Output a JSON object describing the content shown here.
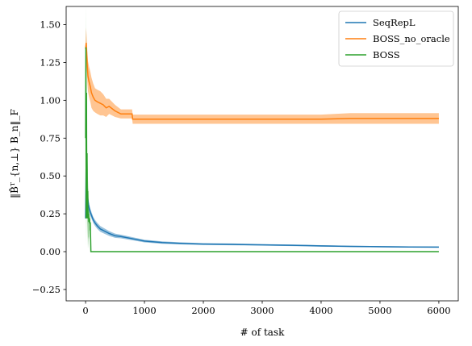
{
  "chart_data": {
    "type": "line",
    "title": "",
    "xlabel": "# of task",
    "ylabel": "‖B̂ᵀ_{n,⊥} B_n‖_F",
    "xlim": [
      -330,
      6330
    ],
    "ylim": [
      -0.325,
      1.62
    ],
    "xticks": [
      0,
      1000,
      2000,
      3000,
      4000,
      5000,
      6000
    ],
    "xtick_labels": [
      "0",
      "1000",
      "2000",
      "3000",
      "4000",
      "5000",
      "6000"
    ],
    "yticks": [
      -0.25,
      0.0,
      0.25,
      0.5,
      0.75,
      1.0,
      1.25,
      1.5
    ],
    "ytick_labels": [
      "−0.25",
      "0.00",
      "0.25",
      "0.50",
      "0.75",
      "1.00",
      "1.25",
      "1.50"
    ],
    "grid": false,
    "legend_position": "top-right",
    "series": [
      {
        "name": "SeqRepL",
        "color": "#1f77b4",
        "x": [
          0,
          10,
          20,
          30,
          40,
          50,
          60,
          80,
          100,
          130,
          160,
          200,
          250,
          300,
          400,
          500,
          600,
          800,
          1000,
          1300,
          1600,
          2000,
          2500,
          3000,
          3500,
          4000,
          4500,
          5000,
          5500,
          6000
        ],
        "y": [
          0.22,
          0.58,
          0.44,
          0.38,
          0.34,
          0.31,
          0.29,
          0.26,
          0.24,
          0.21,
          0.19,
          0.17,
          0.15,
          0.14,
          0.12,
          0.105,
          0.1,
          0.085,
          0.07,
          0.06,
          0.055,
          0.05,
          0.048,
          0.045,
          0.042,
          0.038,
          0.035,
          0.033,
          0.031,
          0.03
        ],
        "band": [
          0.04,
          0.05,
          0.04,
          0.035,
          0.03,
          0.028,
          0.026,
          0.024,
          0.022,
          0.02,
          0.02,
          0.02,
          0.019,
          0.018,
          0.016,
          0.014,
          0.012,
          0.01,
          0.009,
          0.008,
          0.007,
          0.006,
          0.006,
          0.005,
          0.005,
          0.005,
          0.004,
          0.004,
          0.004,
          0.004
        ]
      },
      {
        "name": "BOSS_no_oracle",
        "color": "#ff7f0e",
        "x": [
          0,
          10,
          20,
          30,
          40,
          60,
          80,
          100,
          130,
          160,
          200,
          250,
          300,
          350,
          400,
          500,
          600,
          700,
          790,
          800,
          1000,
          2000,
          3000,
          4000,
          4500,
          5000,
          6000
        ],
        "y": [
          1.34,
          1.38,
          1.3,
          1.22,
          1.16,
          1.12,
          1.09,
          1.05,
          1.02,
          1.0,
          0.99,
          0.98,
          0.97,
          0.95,
          0.96,
          0.93,
          0.91,
          0.91,
          0.91,
          0.875,
          0.875,
          0.875,
          0.875,
          0.875,
          0.88,
          0.88,
          0.88
        ],
        "band": [
          0.04,
          0.1,
          0.1,
          0.1,
          0.1,
          0.1,
          0.1,
          0.1,
          0.09,
          0.08,
          0.08,
          0.08,
          0.07,
          0.06,
          0.05,
          0.04,
          0.03,
          0.03,
          0.03,
          0.03,
          0.03,
          0.03,
          0.03,
          0.03,
          0.035,
          0.035,
          0.035
        ]
      },
      {
        "name": "BOSS",
        "color": "#2ca02c",
        "x": [
          0,
          5,
          10,
          15,
          20,
          25,
          30,
          35,
          40,
          45,
          50,
          55,
          60,
          65,
          70,
          80,
          90,
          100,
          1000,
          6000
        ],
        "y": [
          0.75,
          1.35,
          0.22,
          1.05,
          0.3,
          0.65,
          0.22,
          0.4,
          0.28,
          0.22,
          0.25,
          0.2,
          0.2,
          0.22,
          0.19,
          0.19,
          0.0,
          0.0,
          0.0,
          0.0
        ],
        "band": [
          0.2,
          0.3,
          0.2,
          0.25,
          0.2,
          0.2,
          0.2,
          0.2,
          0.2,
          0.2,
          0.15,
          0.12,
          0.1,
          0.08,
          0.05,
          0.03,
          0.0,
          0.0,
          0.0,
          0.0
        ]
      }
    ]
  }
}
